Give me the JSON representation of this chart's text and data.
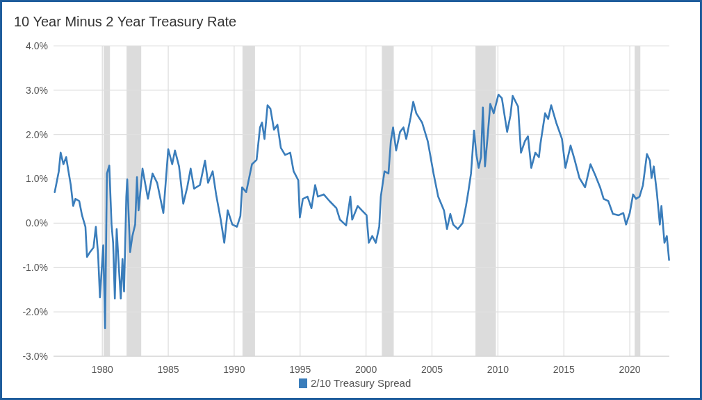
{
  "chart_data": {
    "type": "line",
    "title": "10 Year Minus 2 Year Treasury Rate",
    "xlim": [
      1976.3,
      2023.0
    ],
    "xticks": [
      1980,
      1985,
      1990,
      1995,
      2000,
      2005,
      2010,
      2015,
      2020
    ],
    "ylim": [
      -3,
      4
    ],
    "yticks": [
      {
        "value": -3,
        "label": "-3.0%"
      },
      {
        "value": -2,
        "label": "-2.0%"
      },
      {
        "value": -1,
        "label": "-1.0%"
      },
      {
        "value": 0,
        "label": "0.0%"
      },
      {
        "value": 1,
        "label": "1.0%"
      },
      {
        "value": 2,
        "label": "2.0%"
      },
      {
        "value": 3,
        "label": "3.0%"
      },
      {
        "value": 4,
        "label": "4.0%"
      }
    ],
    "grid": true,
    "legend": "bottom",
    "marker": "none",
    "line_style": "solid",
    "bands": [
      {
        "axis": "x",
        "from": 1980.1,
        "to": 1980.58,
        "color": "#dcdcdc"
      },
      {
        "axis": "x",
        "from": 1981.84,
        "to": 1982.95,
        "color": "#dcdcdc"
      },
      {
        "axis": "x",
        "from": 1990.63,
        "to": 1991.58,
        "color": "#dcdcdc"
      },
      {
        "axis": "x",
        "from": 2001.2,
        "to": 2002.1,
        "color": "#dcdcdc"
      },
      {
        "axis": "x",
        "from": 2008.3,
        "to": 2009.85,
        "color": "#dcdcdc"
      },
      {
        "axis": "x",
        "from": 2020.37,
        "to": 2020.8,
        "color": "#dcdcdc"
      }
    ],
    "series": [
      {
        "name": "2/10 Treasury Spread",
        "color": "#3a7dbb",
        "x": [
          1976.39,
          1976.53,
          1976.7,
          1976.84,
          1977.05,
          1977.26,
          1977.4,
          1977.61,
          1977.79,
          1977.96,
          1978.25,
          1978.46,
          1978.72,
          1978.84,
          1979.07,
          1979.33,
          1979.51,
          1979.68,
          1979.82,
          1980.07,
          1980.21,
          1980.35,
          1980.53,
          1980.7,
          1980.82,
          1980.95,
          1981.09,
          1981.26,
          1981.4,
          1981.53,
          1981.65,
          1981.82,
          1981.89,
          1982.11,
          1982.28,
          1982.49,
          1982.63,
          1982.75,
          1983.05,
          1983.46,
          1983.81,
          1984.16,
          1984.63,
          1985.0,
          1985.3,
          1985.51,
          1985.82,
          1986.14,
          1986.44,
          1986.7,
          1986.96,
          1987.4,
          1987.79,
          1988.02,
          1988.37,
          1988.63,
          1988.98,
          1989.25,
          1989.51,
          1989.86,
          1990.21,
          1990.47,
          1990.6,
          1990.91,
          1991.35,
          1991.7,
          1991.96,
          1992.11,
          1992.3,
          1992.53,
          1992.75,
          1993.02,
          1993.28,
          1993.54,
          1993.86,
          1994.25,
          1994.51,
          1994.86,
          1994.98,
          1995.21,
          1995.56,
          1995.86,
          1996.14,
          1996.35,
          1996.79,
          1997.23,
          1997.75,
          1998.02,
          1998.49,
          1998.81,
          1998.95,
          1999.37,
          1999.68,
          2000.04,
          2000.21,
          2000.47,
          2000.74,
          2001.0,
          2001.12,
          2001.4,
          2001.7,
          2001.88,
          2002.05,
          2002.28,
          2002.58,
          2002.84,
          2003.05,
          2003.37,
          2003.58,
          2003.81,
          2004.25,
          2004.68,
          2005.12,
          2005.47,
          2005.91,
          2006.14,
          2006.39,
          2006.61,
          2006.96,
          2007.32,
          2007.58,
          2007.75,
          2007.96,
          2008.19,
          2008.37,
          2008.54,
          2008.72,
          2008.86,
          2009.02,
          2009.25,
          2009.42,
          2009.68,
          2010.04,
          2010.3,
          2010.7,
          2010.95,
          2011.12,
          2011.53,
          2011.75,
          2012.05,
          2012.28,
          2012.53,
          2012.84,
          2013.11,
          2013.23,
          2013.58,
          2013.81,
          2014.04,
          2014.42,
          2014.86,
          2015.12,
          2015.51,
          2015.82,
          2016.18,
          2016.61,
          2017.02,
          2017.4,
          2017.75,
          2018.02,
          2018.37,
          2018.72,
          2019.16,
          2019.51,
          2019.72,
          2020.0,
          2020.25,
          2020.47,
          2020.74,
          2021.0,
          2021.3,
          2021.53,
          2021.65,
          2021.82,
          2022.05,
          2022.28,
          2022.4,
          2022.63,
          2022.81,
          2022.98
        ],
        "values": [
          0.7,
          0.91,
          1.17,
          1.59,
          1.33,
          1.49,
          1.23,
          0.86,
          0.39,
          0.55,
          0.5,
          0.18,
          -0.08,
          -0.76,
          -0.65,
          -0.55,
          -0.08,
          -0.7,
          -1.67,
          -0.5,
          -2.37,
          1.12,
          1.3,
          -0.03,
          -0.44,
          -1.7,
          -0.13,
          -1.02,
          -1.7,
          -0.81,
          -1.54,
          0.6,
          0.99,
          -0.65,
          -0.29,
          -0.03,
          1.04,
          0.29,
          1.23,
          0.55,
          1.12,
          0.91,
          0.23,
          1.67,
          1.33,
          1.64,
          1.28,
          0.44,
          0.81,
          1.23,
          0.78,
          0.86,
          1.41,
          0.91,
          1.17,
          0.65,
          0.08,
          -0.44,
          0.29,
          -0.03,
          -0.08,
          0.16,
          0.81,
          0.7,
          1.33,
          1.43,
          2.16,
          2.27,
          1.9,
          2.66,
          2.58,
          2.11,
          2.22,
          1.7,
          1.54,
          1.59,
          1.17,
          0.97,
          0.13,
          0.55,
          0.6,
          0.34,
          0.86,
          0.6,
          0.65,
          0.5,
          0.34,
          0.08,
          -0.05,
          0.6,
          0.08,
          0.39,
          0.29,
          0.18,
          -0.44,
          -0.29,
          -0.44,
          -0.08,
          0.6,
          1.17,
          1.12,
          1.85,
          2.16,
          1.64,
          2.06,
          2.16,
          1.9,
          2.37,
          2.74,
          2.48,
          2.27,
          1.85,
          1.12,
          0.6,
          0.29,
          -0.13,
          0.21,
          -0.03,
          -0.13,
          0.0,
          0.39,
          0.7,
          1.12,
          2.09,
          1.54,
          1.25,
          1.49,
          2.61,
          1.28,
          2.06,
          2.69,
          2.48,
          2.9,
          2.82,
          2.06,
          2.43,
          2.87,
          2.63,
          1.59,
          1.85,
          1.96,
          1.25,
          1.59,
          1.49,
          1.8,
          2.48,
          2.35,
          2.66,
          2.27,
          1.9,
          1.25,
          1.75,
          1.43,
          1.02,
          0.81,
          1.33,
          1.07,
          0.81,
          0.55,
          0.5,
          0.21,
          0.18,
          0.23,
          -0.03,
          0.23,
          0.65,
          0.55,
          0.6,
          0.86,
          1.56,
          1.41,
          1.02,
          1.28,
          0.7,
          -0.03,
          0.39,
          -0.44,
          -0.29,
          -0.83
        ]
      }
    ]
  }
}
